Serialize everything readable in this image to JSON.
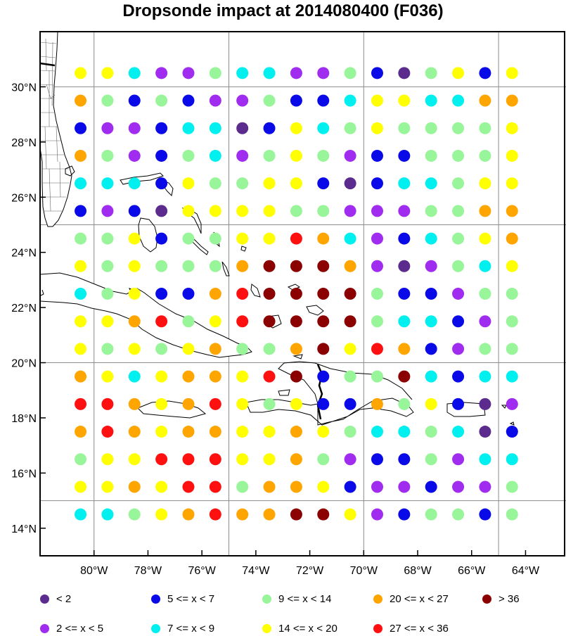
{
  "title": "Dropsonde impact at 2014080400 (F036)",
  "axes": {
    "lon_ticks": [
      {
        "value": -80,
        "label": "80°W"
      },
      {
        "value": -78,
        "label": "78°W"
      },
      {
        "value": -76,
        "label": "76°W"
      },
      {
        "value": -74,
        "label": "74°W"
      },
      {
        "value": -72,
        "label": "72°W"
      },
      {
        "value": -70,
        "label": "70°W"
      },
      {
        "value": -68,
        "label": "68°W"
      },
      {
        "value": -66,
        "label": "66°W"
      },
      {
        "value": -64,
        "label": "64°W"
      }
    ],
    "lat_ticks": [
      {
        "value": 14,
        "label": "14°N"
      },
      {
        "value": 16,
        "label": "16°N"
      },
      {
        "value": 18,
        "label": "18°N"
      },
      {
        "value": 20,
        "label": "20°N"
      },
      {
        "value": 22,
        "label": "22°N"
      },
      {
        "value": 24,
        "label": "24°N"
      },
      {
        "value": 26,
        "label": "26°N"
      },
      {
        "value": 28,
        "label": "28°N"
      },
      {
        "value": 30,
        "label": "30°N"
      }
    ],
    "lon_range": [
      -82,
      -62.5
    ],
    "lat_range": [
      13,
      32
    ],
    "grid_lon": [
      -80,
      -75,
      -70,
      -65
    ],
    "grid_lat": [
      15,
      20,
      25,
      30
    ]
  },
  "legend": [
    {
      "cat": 0,
      "label": "<  2",
      "color": "#5b2c8e"
    },
    {
      "cat": 1,
      "label": "2 <= x <  5",
      "color": "#a02cf0"
    },
    {
      "cat": 2,
      "label": "5 <= x <  7",
      "color": "#0a0ae8"
    },
    {
      "cat": 3,
      "label": "7 <= x <  9",
      "color": "#00f0f0"
    },
    {
      "cat": 4,
      "label": "9 <= x < 14",
      "color": "#99f599"
    },
    {
      "cat": 5,
      "label": "14 <= x < 20",
      "color": "#ffff00"
    },
    {
      "cat": 6,
      "label": "20 <= x < 27",
      "color": "#ffa500"
    },
    {
      "cat": 7,
      "label": "27 <= x < 36",
      "color": "#ff1010"
    },
    {
      "cat": 8,
      "label": "> 36",
      "color": "#8b0000"
    }
  ],
  "chart_data": {
    "type": "scatter",
    "lons": [
      -80.5,
      -79.5,
      -78.5,
      -77.5,
      -76.5,
      -75.5,
      -74.5,
      -73.5,
      -72.5,
      -71.5,
      -70.5,
      -69.5,
      -68.5,
      -67.5,
      -66.5,
      -65.5,
      -64.5
    ],
    "lats": [
      30.5,
      29.5,
      28.5,
      27.5,
      26.5,
      25.5,
      24.5,
      23.5,
      22.5,
      21.5,
      20.5,
      19.5,
      18.5,
      17.5,
      16.5,
      15.5,
      14.5
    ],
    "rows": [
      [
        5,
        5,
        3,
        1,
        1,
        4,
        3,
        3,
        1,
        1,
        4,
        2,
        0,
        4,
        5,
        2,
        5
      ],
      [
        6,
        4,
        2,
        4,
        2,
        1,
        1,
        4,
        2,
        2,
        3,
        5,
        5,
        3,
        3,
        6,
        6
      ],
      [
        2,
        1,
        1,
        2,
        3,
        3,
        0,
        2,
        5,
        3,
        4,
        5,
        4,
        4,
        4,
        4,
        5
      ],
      [
        6,
        4,
        1,
        2,
        4,
        3,
        1,
        4,
        5,
        4,
        1,
        2,
        2,
        4,
        4,
        4,
        5
      ],
      [
        3,
        3,
        3,
        2,
        5,
        4,
        4,
        5,
        5,
        2,
        0,
        2,
        3,
        3,
        4,
        5,
        5
      ],
      [
        2,
        1,
        2,
        0,
        5,
        5,
        5,
        5,
        4,
        4,
        1,
        1,
        1,
        4,
        4,
        6,
        6
      ],
      [
        4,
        4,
        5,
        2,
        4,
        4,
        5,
        5,
        7,
        6,
        3,
        1,
        2,
        3,
        4,
        5,
        6
      ],
      [
        5,
        4,
        5,
        4,
        4,
        4,
        6,
        8,
        8,
        8,
        6,
        1,
        0,
        1,
        4,
        3,
        5
      ],
      [
        3,
        4,
        5,
        2,
        2,
        6,
        7,
        8,
        8,
        8,
        8,
        4,
        2,
        2,
        1,
        4,
        4
      ],
      [
        5,
        5,
        6,
        7,
        4,
        5,
        7,
        8,
        8,
        8,
        8,
        4,
        3,
        3,
        2,
        1,
        4
      ],
      [
        5,
        4,
        5,
        4,
        5,
        6,
        4,
        4,
        6,
        8,
        5,
        7,
        6,
        2,
        1,
        4,
        4
      ],
      [
        6,
        5,
        3,
        5,
        6,
        6,
        5,
        7,
        8,
        2,
        4,
        4,
        8,
        3,
        2,
        3,
        3
      ],
      [
        7,
        7,
        6,
        5,
        6,
        7,
        5,
        4,
        5,
        2,
        2,
        6,
        4,
        5,
        2,
        0,
        1
      ],
      [
        6,
        7,
        6,
        5,
        6,
        6,
        5,
        5,
        6,
        5,
        4,
        3,
        3,
        4,
        3,
        0,
        2
      ],
      [
        4,
        5,
        5,
        7,
        7,
        7,
        5,
        5,
        6,
        4,
        1,
        2,
        2,
        4,
        1,
        3,
        3
      ],
      [
        5,
        5,
        6,
        5,
        7,
        7,
        4,
        6,
        6,
        5,
        2,
        1,
        1,
        2,
        1,
        1,
        4
      ],
      [
        3,
        3,
        4,
        5,
        6,
        7,
        6,
        6,
        8,
        8,
        5,
        1,
        2,
        4,
        4,
        2,
        4
      ]
    ]
  }
}
